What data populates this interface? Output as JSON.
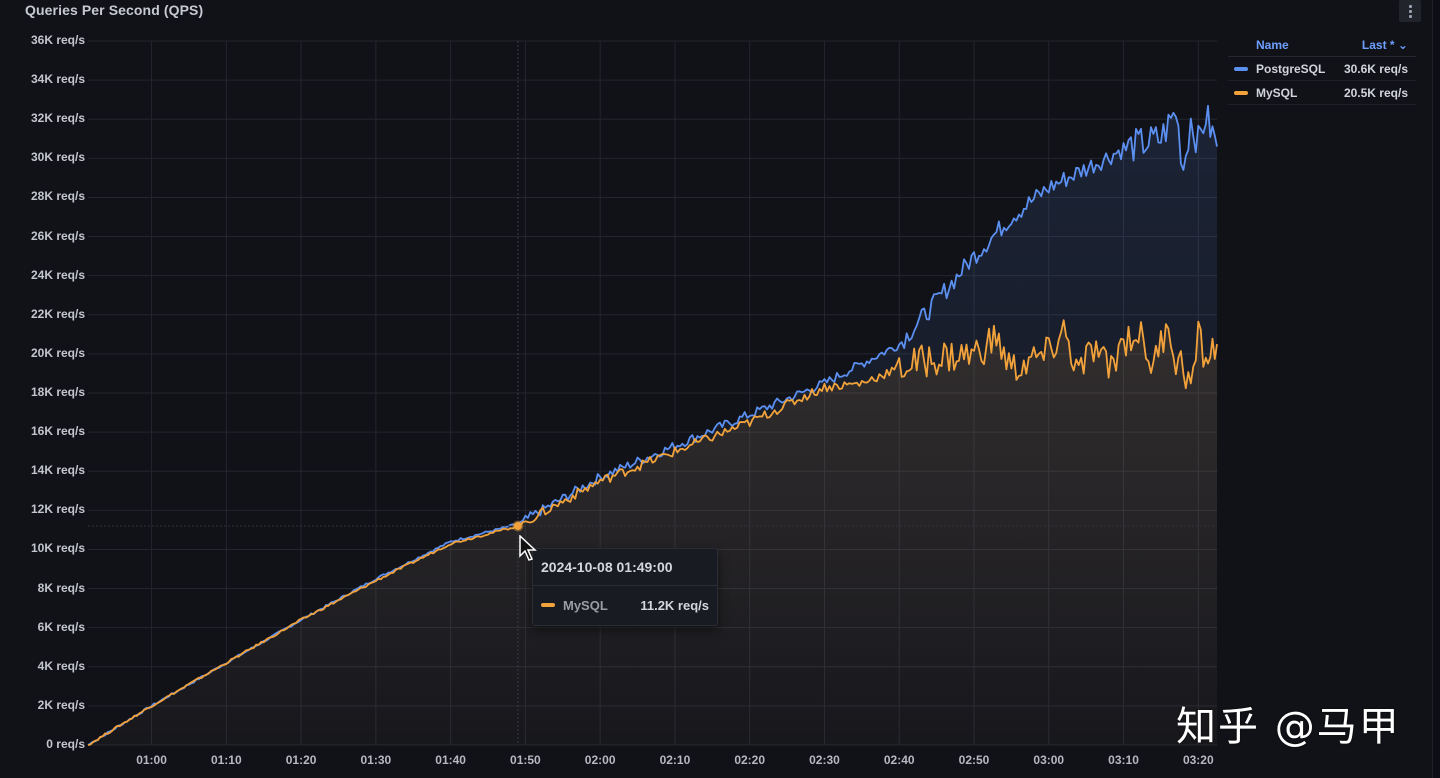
{
  "panel": {
    "title": "Queries Per Second (QPS)",
    "menu_icon": "kebab-menu-icon"
  },
  "legend": {
    "header_name": "Name",
    "header_value": "Last * ⌄",
    "items": [
      {
        "name": "PostgreSQL",
        "value": "30.6K req/s",
        "color": "#5b8ff0"
      },
      {
        "name": "MySQL",
        "value": "20.5K req/s",
        "color": "#f2a23b"
      }
    ]
  },
  "tooltip": {
    "time": "2024-10-08 01:49:00",
    "series": "MySQL",
    "value": "11.2K req/s",
    "color": "#f2a23b"
  },
  "watermark": "知乎 @马甲",
  "chart_data": {
    "type": "line",
    "title": "Queries Per Second (QPS)",
    "xlabel": "",
    "ylabel": "",
    "unit": "req/s",
    "y_ticks": [
      "0 req/s",
      "2K req/s",
      "4K req/s",
      "6K req/s",
      "8K req/s",
      "10K req/s",
      "12K req/s",
      "14K req/s",
      "16K req/s",
      "18K req/s",
      "20K req/s",
      "22K req/s",
      "24K req/s",
      "26K req/s",
      "28K req/s",
      "30K req/s",
      "32K req/s",
      "34K req/s",
      "36K req/s"
    ],
    "x_ticks": [
      "01:00",
      "01:10",
      "01:20",
      "01:30",
      "01:40",
      "01:50",
      "02:00",
      "02:10",
      "02:20",
      "02:30",
      "02:40",
      "02:50",
      "03:00",
      "03:10",
      "03:20"
    ],
    "ylim": [
      0,
      36000
    ],
    "xlim": [
      "00:51:30",
      "03:22:30"
    ],
    "grid": true,
    "legend_position": "right",
    "series": [
      {
        "name": "PostgreSQL",
        "color": "#5b8ff0",
        "last": 30600,
        "points": [
          [
            "00:51:30",
            0
          ],
          [
            "01:00",
            2000
          ],
          [
            "01:10",
            4200
          ],
          [
            "01:20",
            6400
          ],
          [
            "01:30",
            8500
          ],
          [
            "01:40",
            10400
          ],
          [
            "01:49",
            11300
          ],
          [
            "02:00",
            13700
          ],
          [
            "02:10",
            15300
          ],
          [
            "02:20",
            16900
          ],
          [
            "02:30",
            18500
          ],
          [
            "02:35",
            19500
          ],
          [
            "02:40",
            20500
          ],
          [
            "02:43",
            21800
          ],
          [
            "02:50",
            25000
          ],
          [
            "02:55",
            27000
          ],
          [
            "03:00",
            28500
          ],
          [
            "03:05",
            29500
          ],
          [
            "03:10",
            30500
          ],
          [
            "03:15",
            31000
          ],
          [
            "03:17",
            32400
          ],
          [
            "03:18",
            29500
          ],
          [
            "03:19",
            32000
          ],
          [
            "03:20",
            30800
          ],
          [
            "03:21",
            32200
          ],
          [
            "03:22:30",
            30600
          ]
        ]
      },
      {
        "name": "MySQL",
        "color": "#f2a23b",
        "last": 20500,
        "points": [
          [
            "00:51:30",
            0
          ],
          [
            "01:00",
            2000
          ],
          [
            "01:10",
            4200
          ],
          [
            "01:20",
            6400
          ],
          [
            "01:30",
            8400
          ],
          [
            "01:40",
            10300
          ],
          [
            "01:49",
            11200
          ],
          [
            "02:00",
            13500
          ],
          [
            "02:10",
            15000
          ],
          [
            "02:20",
            16500
          ],
          [
            "02:30",
            18300
          ],
          [
            "02:35",
            18500
          ],
          [
            "02:40",
            19300
          ],
          [
            "02:45",
            19800
          ],
          [
            "02:50",
            20000
          ],
          [
            "02:53",
            20800
          ],
          [
            "02:55",
            19200
          ],
          [
            "03:00",
            20000
          ],
          [
            "03:02",
            21200
          ],
          [
            "03:04",
            19000
          ],
          [
            "03:06",
            20300
          ],
          [
            "03:08",
            19200
          ],
          [
            "03:10",
            20700
          ],
          [
            "03:12",
            21100
          ],
          [
            "03:14",
            19300
          ],
          [
            "03:16",
            21800
          ],
          [
            "03:17",
            19500
          ],
          [
            "03:18",
            19500
          ],
          [
            "03:19",
            18200
          ],
          [
            "03:20",
            20800
          ],
          [
            "03:21",
            19700
          ],
          [
            "03:22:30",
            20500
          ]
        ]
      }
    ],
    "hover": {
      "time": "2024-10-08 01:49:00",
      "series": "MySQL",
      "value": 11200
    }
  }
}
